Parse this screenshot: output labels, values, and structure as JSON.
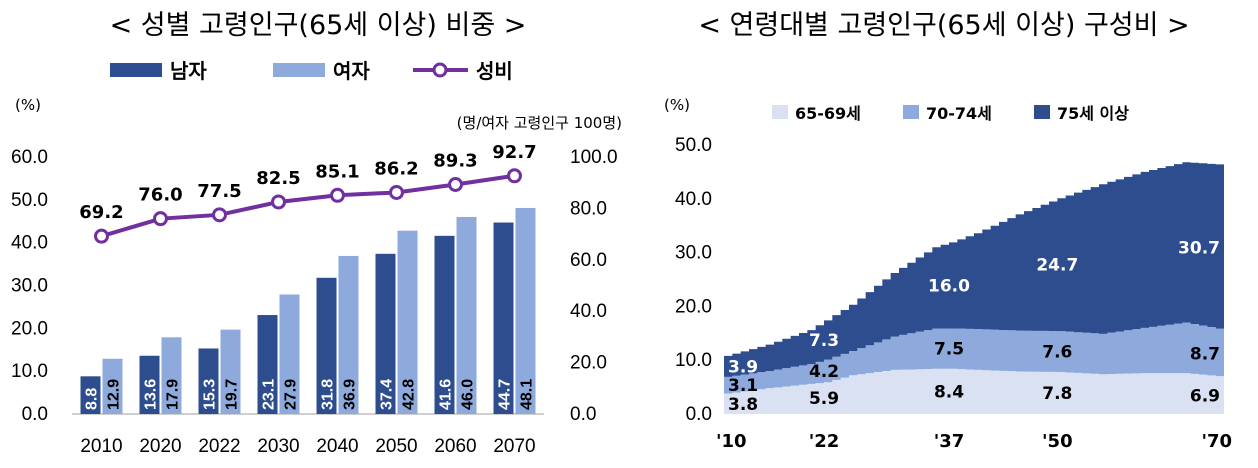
{
  "titles": {
    "left": "< 성별 고령인구(65세 이상) 비중 >",
    "right": "< 연령대별 고령인구(65세 이상) 구성비 >"
  },
  "colors": {
    "male": "#2e4d8f",
    "female": "#8ea9dc",
    "ratio": "#7030a0",
    "age6569": "#dae1f2",
    "age7074": "#8ea9dc",
    "age75": "#2e4d8f"
  },
  "chart_data": [
    {
      "type": "bar",
      "title": "< 성별 고령인구(65세 이상) 비중 >",
      "ylabel": "(%)",
      "y2label": "(명/여자 고령인구 100명)",
      "ylim": [
        0,
        60
      ],
      "y2lim": [
        0,
        100
      ],
      "yticks": [
        "0.0",
        "10.0",
        "20.0",
        "30.0",
        "40.0",
        "50.0",
        "60.0"
      ],
      "y2ticks": [
        "0.0",
        "20.0",
        "40.0",
        "60.0",
        "80.0",
        "100.0"
      ],
      "categories": [
        "2010",
        "2020",
        "2022",
        "2030",
        "2040",
        "2050",
        "2060",
        "2070"
      ],
      "legend": [
        "남자",
        "여자",
        "성비"
      ],
      "series": [
        {
          "name": "남자",
          "values": [
            8.8,
            13.6,
            15.3,
            23.1,
            31.8,
            37.4,
            41.6,
            44.7
          ],
          "labels": [
            "8.8",
            "13.6",
            "15.3",
            "23.1",
            "31.8",
            "37.4",
            "41.6",
            "44.7"
          ]
        },
        {
          "name": "여자",
          "values": [
            12.9,
            17.9,
            19.7,
            27.9,
            36.9,
            42.8,
            46.0,
            48.1
          ],
          "labels": [
            "12.9",
            "17.9",
            "19.7",
            "27.9",
            "36.9",
            "42.8",
            "46.0",
            "48.1"
          ]
        },
        {
          "name": "성비",
          "axis": "right",
          "values": [
            69.2,
            76.0,
            77.5,
            82.5,
            85.1,
            86.2,
            89.3,
            92.7
          ],
          "labels": [
            "69.2",
            "76.0",
            "77.5",
            "82.5",
            "85.1",
            "86.2",
            "89.3",
            "92.7"
          ]
        }
      ]
    },
    {
      "type": "area",
      "title": "< 연령대별 고령인구(65세 이상) 구성비 >",
      "ylabel": "(%)",
      "ylim": [
        0,
        50
      ],
      "yticks": [
        "0.0",
        "10.0",
        "20.0",
        "30.0",
        "40.0",
        "50.0"
      ],
      "x_range": [
        2010,
        2070
      ],
      "xticks": [
        "'10",
        "'22",
        "'37",
        "'50",
        "'70"
      ],
      "xtick_years": [
        2010,
        2022,
        2037,
        2050,
        2070
      ],
      "legend": [
        "65-69세",
        "70-74세",
        "75세 이상"
      ],
      "years": [
        2010,
        2015,
        2020,
        2022,
        2025,
        2030,
        2035,
        2037,
        2040,
        2045,
        2050,
        2055,
        2060,
        2065,
        2070
      ],
      "series": [
        {
          "name": "65-69세",
          "values": [
            3.8,
            4.8,
            5.6,
            5.9,
            7.2,
            8.2,
            8.4,
            8.4,
            8.2,
            7.9,
            7.8,
            7.4,
            7.6,
            7.6,
            6.9
          ]
        },
        {
          "name": "70-74세",
          "values": [
            3.1,
            3.2,
            3.7,
            4.2,
            4.5,
            6.2,
            7.5,
            7.5,
            7.6,
            7.6,
            7.6,
            7.5,
            8.4,
            9.4,
            8.7
          ]
        },
        {
          "name": "75세 이상",
          "values": [
            3.9,
            4.9,
            6.3,
            7.3,
            8.6,
            11.8,
            15.1,
            16.0,
            17.8,
            21.6,
            24.7,
            27.8,
            29.0,
            29.8,
            30.7
          ]
        }
      ],
      "labels": [
        {
          "series": "75세 이상",
          "year": 2010,
          "text": "3.9"
        },
        {
          "series": "70-74세",
          "year": 2010,
          "text": "3.1"
        },
        {
          "series": "65-69세",
          "year": 2010,
          "text": "3.8"
        },
        {
          "series": "75세 이상",
          "year": 2022,
          "text": "7.3"
        },
        {
          "series": "70-74세",
          "year": 2022,
          "text": "4.2"
        },
        {
          "series": "65-69세",
          "year": 2022,
          "text": "5.9"
        },
        {
          "series": "75세 이상",
          "year": 2037,
          "text": "16.0"
        },
        {
          "series": "70-74세",
          "year": 2037,
          "text": "7.5"
        },
        {
          "series": "65-69세",
          "year": 2037,
          "text": "8.4"
        },
        {
          "series": "75세 이상",
          "year": 2050,
          "text": "24.7"
        },
        {
          "series": "70-74세",
          "year": 2050,
          "text": "7.6"
        },
        {
          "series": "65-69세",
          "year": 2050,
          "text": "7.8"
        },
        {
          "series": "75세 이상",
          "year": 2070,
          "text": "30.7"
        },
        {
          "series": "70-74세",
          "year": 2070,
          "text": "8.7"
        },
        {
          "series": "65-69세",
          "year": 2070,
          "text": "6.9"
        }
      ]
    }
  ]
}
